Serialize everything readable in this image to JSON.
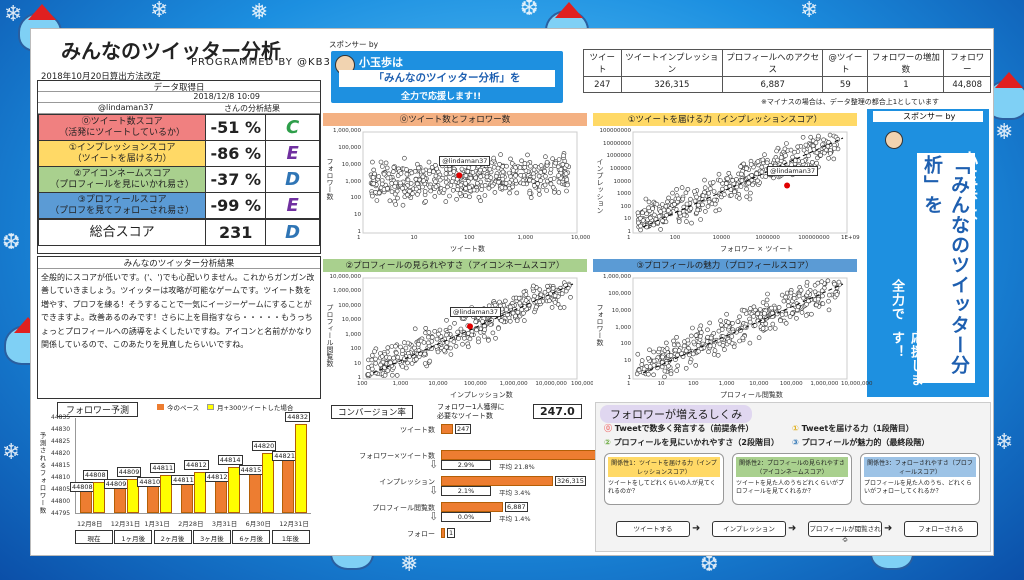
{
  "header": {
    "title": "みんなのツイッター分析",
    "programmed": "PROGRAMMED BY @KB31",
    "calc_date": "2018年10月20日算出方法改定"
  },
  "meta": {
    "date_label": "データ取得日",
    "date_value": "2018/12/8 10:09",
    "user": "@lindaman37",
    "result_label": "さんの分析結果"
  },
  "scores": [
    {
      "label1": "⓪ツイート数スコア",
      "label2": "（活発にツイートしているか）",
      "value": "-51 %",
      "grade": "C",
      "color": "#f08080",
      "gradeColor": "#2e9e4a"
    },
    {
      "label1": "①インプレッションスコア",
      "label2": "（ツイートを届ける力）",
      "value": "-86 %",
      "grade": "E",
      "color": "#ffd966",
      "gradeColor": "#7030a0"
    },
    {
      "label1": "②アイコンネームスコア",
      "label2": "（プロフィールを見にいかれ易さ）",
      "value": "-37 %",
      "grade": "D",
      "color": "#a9d08e",
      "gradeColor": "#2f75b5"
    },
    {
      "label1": "③プロフィールスコア",
      "label2": "（プロフを見てフォローされ易さ）",
      "value": "-99 %",
      "grade": "E",
      "color": "#5b9bd5",
      "gradeColor": "#7030a0"
    }
  ],
  "total": {
    "label": "総合スコア",
    "value": "231",
    "grade": "D"
  },
  "analysis": {
    "heading": "みんなのツイッター分析結果",
    "text": "全般的にスコアが低いです。('、')でも心配いりません。これからガンガン改善していきましょう。ツイッターは攻略が可能なゲームです。ツイート数を増やす、プロフを練る！そうすることで一気にイージーゲームにすることができますよ。改善あるのみです！さらに上を目指すなら・・・・・もうっちょっとプロフィールへの誘導をよくしたいですね。アイコンと名前がかなり関係しているので、このあたりを見直したらいいですね。"
  },
  "sponsor1": {
    "tag": "スポンサー by",
    "name": "小玉歩は",
    "line2": "「みんなのツイッター分析」を",
    "line3": "全力で応援します!!"
  },
  "stats": {
    "headers": [
      "ツイート",
      "ツイートインプレッション",
      "プロフィールへのアクセス",
      "@ツイート",
      "フォロワーの増加数",
      "フォロワー"
    ],
    "values": [
      "247",
      "326,315",
      "6,887",
      "59",
      "1",
      "44,808"
    ],
    "note": "※マイナスの場合は、データ整理の都合上1としています"
  },
  "charts": [
    {
      "title": "⓪ツイート数とフォロワー数",
      "xlabel": "ツイート数",
      "ylabel": "フォロワー数",
      "xticks": [
        "1",
        "10",
        "100",
        "1,000",
        "10,000"
      ],
      "yticks": [
        "1,000,000",
        "100,000",
        "10,000",
        "1,000",
        "100",
        "10",
        "1"
      ],
      "marker": "@lindaman37",
      "color": "#f4b183"
    },
    {
      "title": "①ツイートを届ける力（インプレッションスコア）",
      "xlabel": "フォロワー × ツイート",
      "ylabel": "インプレッション",
      "xticks": [
        "1",
        "100",
        "10000",
        "1000000",
        "100000000",
        "1E+09"
      ],
      "yticks": [
        "100000000",
        "10000000",
        "1000000",
        "100000",
        "10000",
        "1000",
        "100",
        "10",
        "1"
      ],
      "marker": "@lindaman37",
      "color": "#ffd966"
    },
    {
      "title": "②プロフィールの見られやすさ（アイコンネームスコア）",
      "xlabel": "インプレッション数",
      "ylabel": "プロフィール閲覧数",
      "xticks": [
        "100",
        "1,000",
        "10,000",
        "100,000",
        "1,000,000",
        "10,000,000",
        "100,000,000"
      ],
      "yticks": [
        "10,000,000",
        "1,000,000",
        "100,000",
        "10,000",
        "1,000",
        "100",
        "10",
        "1"
      ],
      "marker": "@lindaman37",
      "color": "#a9d08e"
    },
    {
      "title": "③プロフィールの魅力（プロフィールスコア）",
      "xlabel": "プロフィール閲覧数",
      "ylabel": "フォロワー数",
      "xticks": [
        "1",
        "10",
        "100",
        "1,000",
        "10,000",
        "100,000",
        "1,000,000",
        "10,000,000"
      ],
      "yticks": [
        "1,000,000",
        "100,000",
        "10,000",
        "1,000",
        "100",
        "10",
        "1"
      ],
      "marker": "",
      "color": "#5b9bd5"
    }
  ],
  "sponsor2": {
    "tag": "スポンサー by",
    "name": "小玉歩は",
    "main": "「みんなのツイッター分析」を",
    "sub": "全力で",
    "end": "応援します！"
  },
  "forecast": {
    "title": "フォロワー予測",
    "legend1": "今のペース",
    "legend2": "月+300ツイートした場合",
    "ylabel": "予測されるフォロワー数",
    "yticks": [
      "44835",
      "44830",
      "44825",
      "44820",
      "44815",
      "44810",
      "44805",
      "44800",
      "44795"
    ],
    "dates": [
      "12月8日",
      "12月31日",
      "1月31日",
      "2月28日",
      "3月31日",
      "6月30日",
      "12月31日"
    ],
    "periods": [
      "現在",
      "1ヶ月後",
      "2ヶ月後",
      "3ヶ月後",
      "6ヶ月後",
      "1年後"
    ]
  },
  "chart_data": {
    "type": "bar",
    "categories": [
      "12月8日",
      "12月31日",
      "1月31日",
      "2月28日",
      "3月31日",
      "6月30日",
      "12月31日"
    ],
    "series": [
      {
        "name": "今のペース",
        "values": [
          44808,
          44809,
          44810,
          44811,
          44812,
          44815,
          44821
        ]
      },
      {
        "name": "月+300ツイートした場合",
        "values": [
          44808,
          44809,
          44811,
          44812,
          44814,
          44820,
          44832
        ]
      }
    ],
    "ylim": [
      44795,
      44835
    ]
  },
  "conversion": {
    "title": "コンバージョン率",
    "need_label1": "フォロワー1人獲得に",
    "need_label2": "必要なツイート数",
    "need_value": "247.0",
    "rows": [
      {
        "label": "ツイート数",
        "value": "247"
      },
      {
        "label": "フォロワー×ツイート数",
        "value": "11,067,576"
      },
      {
        "label": "インプレッション",
        "value": "326,315"
      },
      {
        "label": "プロフィール閲覧数",
        "value": "6,887"
      },
      {
        "label": "フォロー",
        "value": "1"
      }
    ],
    "rates": [
      {
        "rate": "2.9%",
        "avg": "平均 21.8%"
      },
      {
        "rate": "2.1%",
        "avg": "平均 3.4%"
      },
      {
        "rate": "0.0%",
        "avg": "平均 1.4%"
      }
    ]
  },
  "mechanism": {
    "title": "フォロワーが増えるしくみ",
    "p0": "Tweetで数多く発言する（前提条件）",
    "p1": "Tweetを届ける力（1段階目）",
    "p2": "プロフィールを見にいかれやすさ（2段階目）",
    "p3": "プロフィールが魅力的（最終段階）",
    "steps": [
      {
        "head": "関係性1：ツイートを届ける力（インプレッションスコア）",
        "body": "ツイートをしてどれくらいの人が見てくれるのか？"
      },
      {
        "head": "関係性2：プロフィールの見られやすさ（アイコンネームスコア）",
        "body": "ツイートを見た人のうちどれくらいがプロフィールを見てくれるか？"
      },
      {
        "head": "関係性3：フォローされやすさ（プロフィールスコア）",
        "body": "プロフィールを見た人のうち、どれくらいがフォローしてくれるか？"
      }
    ],
    "flow": [
      "ツイートする",
      "インプレッション",
      "プロフィールが閲覧される",
      "フォローされる"
    ]
  }
}
